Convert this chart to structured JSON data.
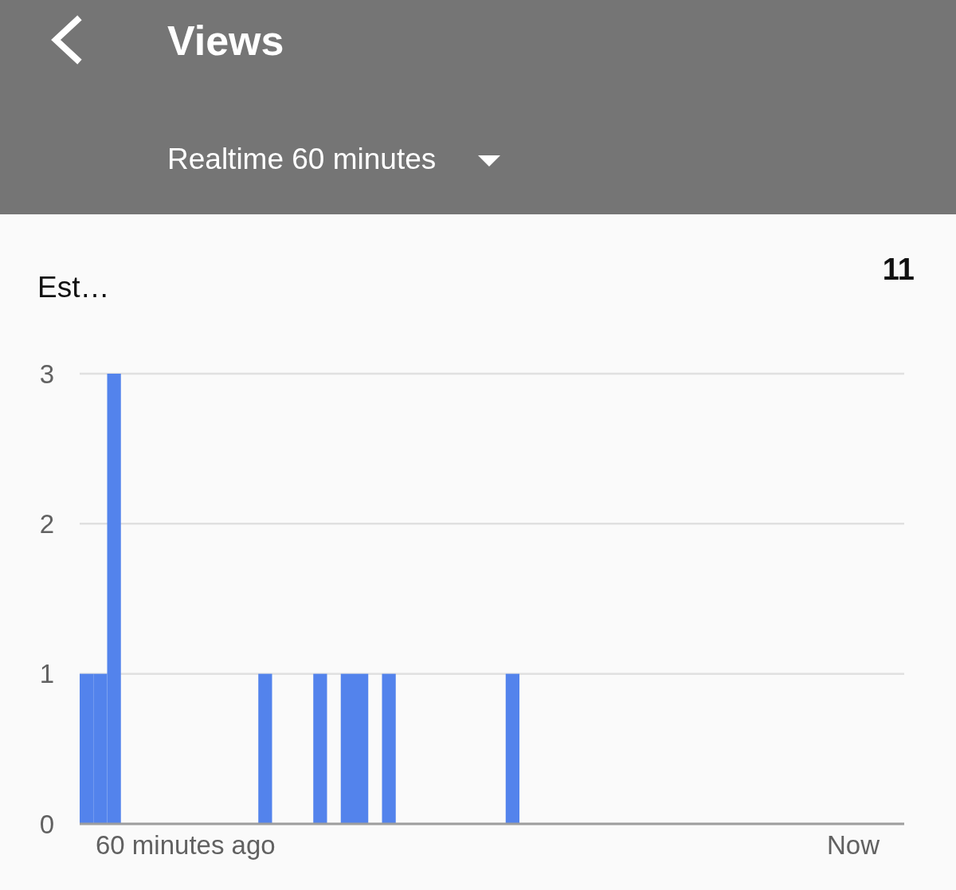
{
  "chart_data": {
    "type": "bar",
    "title": "Views",
    "subtitle": "Realtime 60 minutes",
    "ylabel": "Est…",
    "annotations": [
      "11",
      "60 minutes ago",
      "Now"
    ],
    "categories": [
      null,
      null,
      null,
      null,
      null,
      null,
      null,
      null,
      null,
      null,
      null,
      null,
      null,
      null,
      null,
      null,
      null,
      null,
      null,
      null,
      null,
      null,
      null,
      null,
      null,
      null,
      null,
      null,
      null,
      null,
      null,
      null,
      null,
      null,
      null,
      null,
      null,
      null,
      null,
      null,
      null,
      null,
      null,
      null,
      null,
      null,
      null,
      null,
      null,
      null,
      null,
      null,
      null,
      null,
      null,
      null,
      null,
      null,
      null,
      null
    ],
    "values": [
      1,
      1,
      3,
      0,
      0,
      0,
      0,
      0,
      0,
      0,
      0,
      0,
      0,
      1,
      0,
      0,
      0,
      1,
      0,
      1,
      1,
      0,
      1,
      0,
      0,
      0,
      0,
      0,
      0,
      0,
      0,
      1,
      0,
      0,
      0,
      0,
      0,
      0,
      0,
      0,
      0,
      0,
      0,
      0,
      0,
      0,
      0,
      0,
      0,
      0,
      0,
      0,
      0,
      0,
      0,
      0,
      0,
      0,
      0,
      0
    ],
    "color": "#5383ec",
    "ylim": [
      0,
      3
    ],
    "yticks": [
      0,
      1,
      2,
      3
    ],
    "grid": "y"
  }
}
